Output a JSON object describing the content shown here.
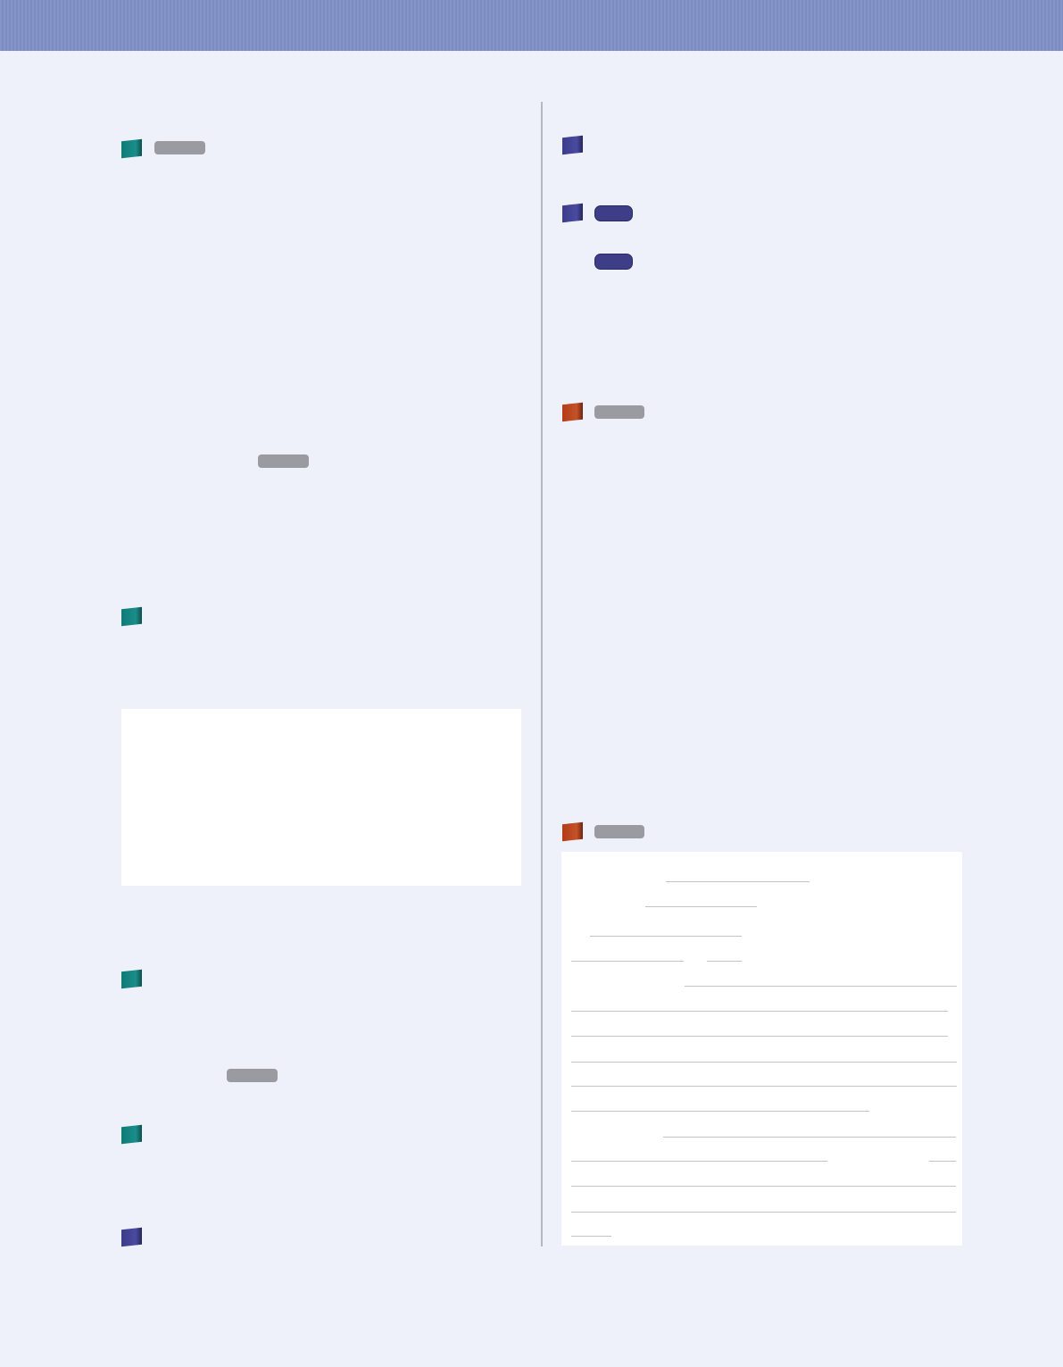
{
  "colors": {
    "header": "#8090c4",
    "background": "#eef1fa",
    "bullet_teal": "#137c78",
    "bullet_navy": "#3e3e8c",
    "bullet_rust": "#b8401e",
    "pill_gray": "#9a9ba0",
    "pill_navy": "#3e3e88"
  },
  "icons": {
    "section_bullet": "square-bullet-icon"
  }
}
